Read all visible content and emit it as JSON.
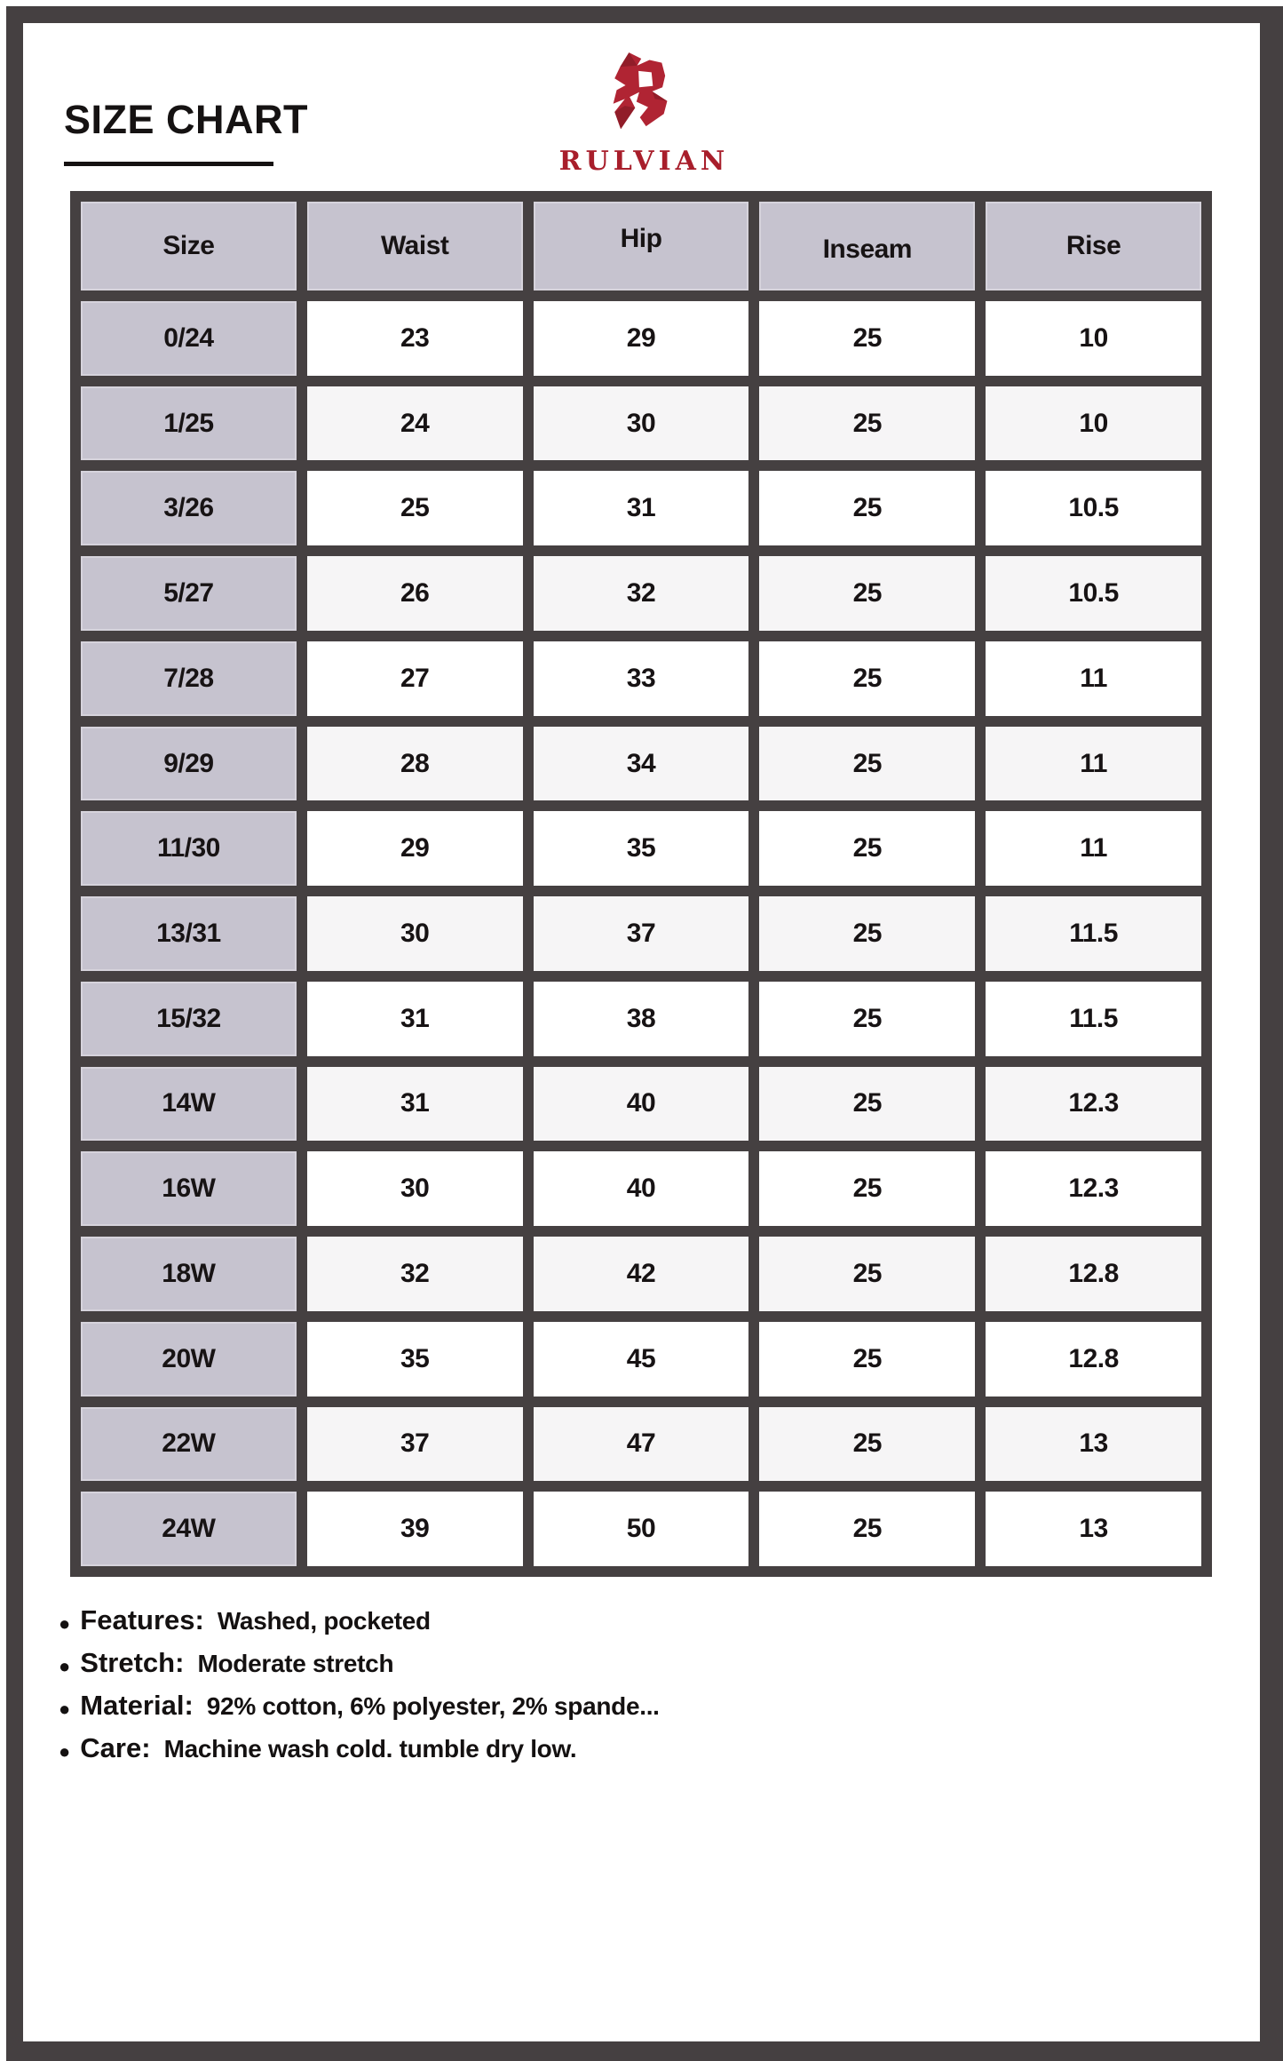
{
  "header": {
    "title": "SIZE CHART",
    "brand": "RULVIAN",
    "logo_icon": "rulvian-r-monogram"
  },
  "table": {
    "columns": [
      "Size",
      "Waist",
      "Hip",
      "Inseam",
      "Rise"
    ],
    "rows": [
      [
        "0/24",
        "23",
        "29",
        "25",
        "10"
      ],
      [
        "1/25",
        "24",
        "30",
        "25",
        "10"
      ],
      [
        "3/26",
        "25",
        "31",
        "25",
        "10.5"
      ],
      [
        "5/27",
        "26",
        "32",
        "25",
        "10.5"
      ],
      [
        "7/28",
        "27",
        "33",
        "25",
        "11"
      ],
      [
        "9/29",
        "28",
        "34",
        "25",
        "11"
      ],
      [
        "11/30",
        "29",
        "35",
        "25",
        "11"
      ],
      [
        "13/31",
        "30",
        "37",
        "25",
        "11.5"
      ],
      [
        "15/32",
        "31",
        "38",
        "25",
        "11.5"
      ],
      [
        "14W",
        "31",
        "40",
        "25",
        "12.3"
      ],
      [
        "16W",
        "30",
        "40",
        "25",
        "12.3"
      ],
      [
        "18W",
        "32",
        "42",
        "25",
        "12.8"
      ],
      [
        "20W",
        "35",
        "45",
        "25",
        "12.8"
      ],
      [
        "22W",
        "37",
        "47",
        "25",
        "13"
      ],
      [
        "24W",
        "39",
        "50",
        "25",
        "13"
      ]
    ]
  },
  "details": [
    {
      "label": "Features:",
      "value": "Washed, pocketed"
    },
    {
      "label": "Stretch:",
      "value": "Moderate stretch"
    },
    {
      "label": "Material:",
      "value": "92% cotton, 6% polyester, 2% spande..."
    },
    {
      "label": "Care:",
      "value": "Machine wash cold. tumble dry low."
    }
  ],
  "colors": {
    "frame": "#454041",
    "table_lines": "#454041",
    "header_cell": "#c6c3cf",
    "row_alt": "#f6f5f6",
    "brand_red": "#b02433",
    "ink": "#151212"
  }
}
